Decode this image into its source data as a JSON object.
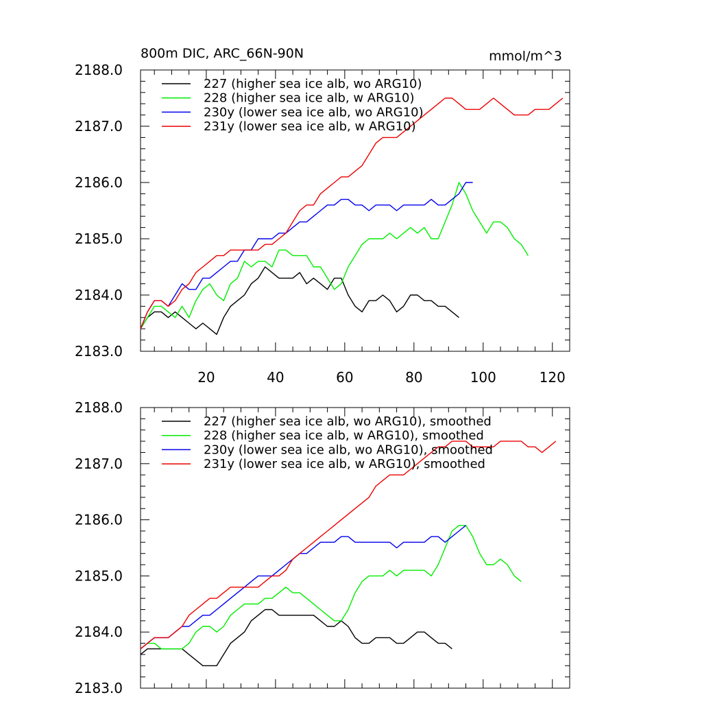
{
  "title_left": "800m DIC, ARC_66N-90N",
  "title_right": "mmol/m^3",
  "chart_data": [
    {
      "type": "line",
      "xlim": [
        1,
        125
      ],
      "ylim": [
        2183.0,
        2188.0
      ],
      "x_ticks": [
        "20",
        "40",
        "60",
        "80",
        "100",
        "120"
      ],
      "y_ticks": [
        "2183.0",
        "2184.0",
        "2185.0",
        "2186.0",
        "2187.0",
        "2188.0"
      ],
      "legend_position": "top-left",
      "series": [
        {
          "name": "227 (higher sea ice alb, wo ARG10)",
          "color": "#000000",
          "x": [
            1,
            3,
            5,
            7,
            9,
            11,
            13,
            15,
            17,
            19,
            21,
            23,
            25,
            27,
            29,
            31,
            33,
            35,
            37,
            39,
            41,
            43,
            45,
            47,
            49,
            51,
            53,
            55,
            57,
            59,
            61,
            63,
            65,
            67,
            69,
            71,
            73,
            75,
            77,
            79,
            81,
            83,
            85,
            87,
            89,
            91,
            93
          ],
          "y": [
            2183.4,
            2183.6,
            2183.7,
            2183.7,
            2183.6,
            2183.7,
            2183.6,
            2183.5,
            2183.4,
            2183.5,
            2183.4,
            2183.3,
            2183.6,
            2183.8,
            2183.9,
            2184.0,
            2184.2,
            2184.3,
            2184.5,
            2184.4,
            2184.3,
            2184.3,
            2184.3,
            2184.4,
            2184.2,
            2184.3,
            2184.2,
            2184.1,
            2184.3,
            2184.3,
            2184.0,
            2183.8,
            2183.7,
            2183.9,
            2183.9,
            2184.0,
            2183.9,
            2183.7,
            2183.8,
            2184.0,
            2184.0,
            2183.9,
            2183.9,
            2183.8,
            2183.8,
            2183.7,
            2183.6
          ]
        },
        {
          "name": "228 (higher sea ice alb, w ARG10)",
          "color": "#00ee00",
          "x": [
            1,
            3,
            5,
            7,
            9,
            11,
            13,
            15,
            17,
            19,
            21,
            23,
            25,
            27,
            29,
            31,
            33,
            35,
            37,
            39,
            41,
            43,
            45,
            47,
            49,
            51,
            53,
            55,
            57,
            59,
            61,
            63,
            65,
            67,
            69,
            71,
            73,
            75,
            77,
            79,
            81,
            83,
            85,
            87,
            89,
            91,
            93,
            95,
            97,
            99,
            101,
            103,
            105,
            107,
            109,
            111,
            113
          ],
          "y": [
            2183.4,
            2183.6,
            2183.8,
            2183.8,
            2183.7,
            2183.6,
            2183.8,
            2183.6,
            2183.9,
            2184.1,
            2184.2,
            2184.0,
            2183.9,
            2184.2,
            2184.3,
            2184.6,
            2184.5,
            2184.6,
            2184.6,
            2184.5,
            2184.8,
            2184.8,
            2184.7,
            2184.7,
            2184.7,
            2184.5,
            2184.5,
            2184.3,
            2184.1,
            2184.2,
            2184.5,
            2184.7,
            2184.9,
            2185.0,
            2185.0,
            2185.0,
            2185.1,
            2185.0,
            2185.1,
            2185.2,
            2185.1,
            2185.2,
            2185.0,
            2185.0,
            2185.3,
            2185.6,
            2186.0,
            2185.8,
            2185.5,
            2185.3,
            2185.1,
            2185.3,
            2185.3,
            2185.2,
            2185.0,
            2184.9,
            2184.7
          ]
        },
        {
          "name": "230y (lower sea ice alb, wo ARG10)",
          "color": "#0000ee",
          "x": [
            1,
            3,
            5,
            7,
            9,
            11,
            13,
            15,
            17,
            19,
            21,
            23,
            25,
            27,
            29,
            31,
            33,
            35,
            37,
            39,
            41,
            43,
            45,
            47,
            49,
            51,
            53,
            55,
            57,
            59,
            61,
            63,
            65,
            67,
            69,
            71,
            73,
            75,
            77,
            79,
            81,
            83,
            85,
            87,
            89,
            91,
            93,
            95,
            97
          ],
          "y": [
            2183.4,
            2183.7,
            2183.9,
            2183.9,
            2183.8,
            2184.0,
            2184.2,
            2184.1,
            2184.1,
            2184.3,
            2184.3,
            2184.4,
            2184.5,
            2184.6,
            2184.6,
            2184.8,
            2184.8,
            2185.0,
            2185.0,
            2185.0,
            2185.1,
            2185.1,
            2185.2,
            2185.3,
            2185.3,
            2185.4,
            2185.5,
            2185.6,
            2185.6,
            2185.7,
            2185.7,
            2185.6,
            2185.6,
            2185.5,
            2185.6,
            2185.6,
            2185.6,
            2185.5,
            2185.6,
            2185.6,
            2185.6,
            2185.6,
            2185.7,
            2185.6,
            2185.6,
            2185.7,
            2185.8,
            2186.0,
            2186.0
          ]
        },
        {
          "name": "231y (lower sea ice alb, w ARG10)",
          "color": "#ee0000",
          "x": [
            1,
            3,
            5,
            7,
            9,
            11,
            13,
            15,
            17,
            19,
            21,
            23,
            25,
            27,
            29,
            31,
            33,
            35,
            37,
            39,
            41,
            43,
            45,
            47,
            49,
            51,
            53,
            55,
            57,
            59,
            61,
            63,
            65,
            67,
            69,
            71,
            73,
            75,
            77,
            79,
            81,
            83,
            85,
            87,
            89,
            91,
            93,
            95,
            97,
            99,
            101,
            103,
            105,
            107,
            109,
            111,
            113,
            115,
            117,
            119,
            121,
            123
          ],
          "y": [
            2183.4,
            2183.7,
            2183.9,
            2183.9,
            2183.8,
            2183.9,
            2184.1,
            2184.2,
            2184.4,
            2184.5,
            2184.6,
            2184.7,
            2184.7,
            2184.8,
            2184.8,
            2184.8,
            2184.8,
            2184.8,
            2184.9,
            2184.9,
            2185.0,
            2185.1,
            2185.3,
            2185.5,
            2185.6,
            2185.6,
            2185.8,
            2185.9,
            2186.0,
            2186.1,
            2186.1,
            2186.2,
            2186.3,
            2186.5,
            2186.7,
            2186.8,
            2186.8,
            2186.8,
            2186.9,
            2187.0,
            2187.1,
            2187.2,
            2187.3,
            2187.4,
            2187.5,
            2187.5,
            2187.4,
            2187.3,
            2187.3,
            2187.3,
            2187.4,
            2187.5,
            2187.4,
            2187.3,
            2187.2,
            2187.2,
            2187.2,
            2187.3,
            2187.3,
            2187.3,
            2187.4,
            2187.5
          ]
        }
      ]
    },
    {
      "type": "line",
      "xlim": [
        1,
        125
      ],
      "ylim": [
        2183.0,
        2188.0
      ],
      "y_ticks": [
        "2183.0",
        "2184.0",
        "2185.0",
        "2186.0",
        "2187.0",
        "2188.0"
      ],
      "legend_position": "top-left",
      "series": [
        {
          "name": "227 (higher sea ice alb, wo ARG10), smoothed",
          "color": "#000000",
          "x": [
            1,
            3,
            5,
            7,
            9,
            11,
            13,
            15,
            17,
            19,
            21,
            23,
            25,
            27,
            29,
            31,
            33,
            35,
            37,
            39,
            41,
            43,
            45,
            47,
            49,
            51,
            53,
            55,
            57,
            59,
            61,
            63,
            65,
            67,
            69,
            71,
            73,
            75,
            77,
            79,
            81,
            83,
            85,
            87,
            89,
            91
          ],
          "y": [
            2183.6,
            2183.7,
            2183.7,
            2183.7,
            2183.7,
            2183.7,
            2183.7,
            2183.6,
            2183.5,
            2183.4,
            2183.4,
            2183.4,
            2183.6,
            2183.8,
            2183.9,
            2184.0,
            2184.2,
            2184.3,
            2184.4,
            2184.4,
            2184.3,
            2184.3,
            2184.3,
            2184.3,
            2184.3,
            2184.3,
            2184.2,
            2184.1,
            2184.1,
            2184.2,
            2184.1,
            2183.9,
            2183.8,
            2183.8,
            2183.9,
            2183.9,
            2183.9,
            2183.8,
            2183.8,
            2183.9,
            2184.0,
            2184.0,
            2183.9,
            2183.8,
            2183.8,
            2183.7
          ]
        },
        {
          "name": "228 (higher sea ice alb, w ARG10), smoothed",
          "color": "#00ee00",
          "x": [
            1,
            3,
            5,
            7,
            9,
            11,
            13,
            15,
            17,
            19,
            21,
            23,
            25,
            27,
            29,
            31,
            33,
            35,
            37,
            39,
            41,
            43,
            45,
            47,
            49,
            51,
            53,
            55,
            57,
            59,
            61,
            63,
            65,
            67,
            69,
            71,
            73,
            75,
            77,
            79,
            81,
            83,
            85,
            87,
            89,
            91,
            93,
            95,
            97,
            99,
            101,
            103,
            105,
            107,
            109,
            111
          ],
          "y": [
            2183.7,
            2183.8,
            2183.8,
            2183.7,
            2183.7,
            2183.7,
            2183.7,
            2183.8,
            2184.0,
            2184.1,
            2184.1,
            2184.0,
            2184.1,
            2184.3,
            2184.4,
            2184.5,
            2184.5,
            2184.5,
            2184.6,
            2184.6,
            2184.7,
            2184.8,
            2184.7,
            2184.7,
            2184.6,
            2184.5,
            2184.4,
            2184.3,
            2184.2,
            2184.2,
            2184.4,
            2184.7,
            2184.9,
            2185.0,
            2185.0,
            2185.0,
            2185.1,
            2185.0,
            2185.1,
            2185.1,
            2185.1,
            2185.1,
            2185.0,
            2185.2,
            2185.5,
            2185.8,
            2185.9,
            2185.9,
            2185.7,
            2185.4,
            2185.2,
            2185.2,
            2185.3,
            2185.2,
            2185.0,
            2184.9
          ]
        },
        {
          "name": "230y (lower sea ice alb, wo ARG10), smoothed",
          "color": "#0000ee",
          "x": [
            1,
            3,
            5,
            7,
            9,
            11,
            13,
            15,
            17,
            19,
            21,
            23,
            25,
            27,
            29,
            31,
            33,
            35,
            37,
            39,
            41,
            43,
            45,
            47,
            49,
            51,
            53,
            55,
            57,
            59,
            61,
            63,
            65,
            67,
            69,
            71,
            73,
            75,
            77,
            79,
            81,
            83,
            85,
            87,
            89,
            91,
            93,
            95
          ],
          "y": [
            2183.7,
            2183.8,
            2183.9,
            2183.9,
            2183.9,
            2184.0,
            2184.1,
            2184.1,
            2184.2,
            2184.3,
            2184.3,
            2184.4,
            2184.5,
            2184.6,
            2184.7,
            2184.8,
            2184.9,
            2185.0,
            2185.0,
            2185.0,
            2185.1,
            2185.2,
            2185.3,
            2185.4,
            2185.4,
            2185.5,
            2185.6,
            2185.6,
            2185.6,
            2185.7,
            2185.7,
            2185.6,
            2185.6,
            2185.6,
            2185.6,
            2185.6,
            2185.6,
            2185.5,
            2185.6,
            2185.6,
            2185.6,
            2185.6,
            2185.7,
            2185.7,
            2185.6,
            2185.7,
            2185.8,
            2185.9
          ]
        },
        {
          "name": "231y (lower sea ice alb, w ARG10), smoothed",
          "color": "#ee0000",
          "x": [
            1,
            3,
            5,
            7,
            9,
            11,
            13,
            15,
            17,
            19,
            21,
            23,
            25,
            27,
            29,
            31,
            33,
            35,
            37,
            39,
            41,
            43,
            45,
            47,
            49,
            51,
            53,
            55,
            57,
            59,
            61,
            63,
            65,
            67,
            69,
            71,
            73,
            75,
            77,
            79,
            81,
            83,
            85,
            87,
            89,
            91,
            93,
            95,
            97,
            99,
            101,
            103,
            105,
            107,
            109,
            111,
            113,
            115,
            117,
            119,
            121
          ],
          "y": [
            2183.7,
            2183.8,
            2183.9,
            2183.9,
            2183.9,
            2184.0,
            2184.1,
            2184.3,
            2184.4,
            2184.5,
            2184.6,
            2184.6,
            2184.7,
            2184.8,
            2184.8,
            2184.8,
            2184.8,
            2184.8,
            2184.9,
            2185.0,
            2185.0,
            2185.1,
            2185.3,
            2185.4,
            2185.5,
            2185.6,
            2185.7,
            2185.8,
            2185.9,
            2186.0,
            2186.1,
            2186.2,
            2186.3,
            2186.4,
            2186.6,
            2186.7,
            2186.8,
            2186.8,
            2186.8,
            2186.9,
            2187.0,
            2187.1,
            2187.2,
            2187.3,
            2187.3,
            2187.4,
            2187.4,
            2187.4,
            2187.3,
            2187.3,
            2187.3,
            2187.3,
            2187.4,
            2187.4,
            2187.4,
            2187.4,
            2187.3,
            2187.3,
            2187.2,
            2187.3,
            2187.4
          ]
        }
      ]
    }
  ]
}
